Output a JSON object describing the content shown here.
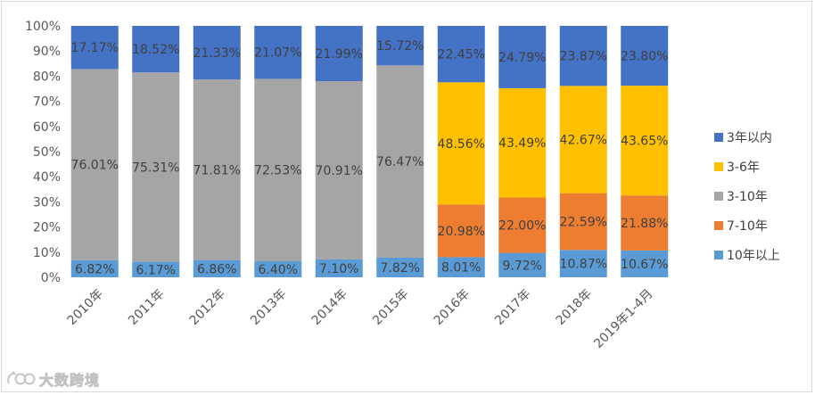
{
  "chart_data": {
    "type": "bar",
    "stacked": true,
    "percent_stacked": true,
    "categories": [
      "2010年",
      "2011年",
      "2012年",
      "2013年",
      "2014年",
      "2015年",
      "2016年",
      "2017年",
      "2018年",
      "2019年1-4月"
    ],
    "y_ticks": [
      "0%",
      "10%",
      "20%",
      "30%",
      "40%",
      "50%",
      "60%",
      "70%",
      "80%",
      "90%",
      "100%"
    ],
    "ylim": [
      0,
      100
    ],
    "legend_position": "right",
    "grid": false,
    "series": [
      {
        "name": "10年以上",
        "color": "#5b9bd5",
        "values": [
          6.82,
          6.17,
          6.86,
          6.4,
          7.1,
          7.82,
          8.01,
          9.72,
          10.87,
          10.67
        ],
        "labels": [
          "6.82%",
          "6.17%",
          "6.86%",
          "6.40%",
          "7.10%",
          "7.82%",
          "8.01%",
          "9.72%",
          "10.87%",
          "10.67%"
        ]
      },
      {
        "name": "7-10年",
        "color": "#ed7d31",
        "values": [
          null,
          null,
          null,
          null,
          null,
          null,
          20.98,
          22.0,
          22.59,
          21.88
        ],
        "labels": [
          "",
          "",
          "",
          "",
          "",
          "",
          "20.98%",
          "22.00%",
          "22.59%",
          "21.88%"
        ]
      },
      {
        "name": "3-10年",
        "color": "#a5a5a5",
        "values": [
          76.01,
          75.31,
          71.81,
          72.53,
          70.91,
          76.47,
          null,
          null,
          null,
          null
        ],
        "labels": [
          "76.01%",
          "75.31%",
          "71.81%",
          "72.53%",
          "70.91%",
          "76.47%",
          "",
          "",
          "",
          ""
        ]
      },
      {
        "name": "3-6年",
        "color": "#ffc000",
        "values": [
          null,
          null,
          null,
          null,
          null,
          null,
          48.56,
          43.49,
          42.67,
          43.65
        ],
        "labels": [
          "",
          "",
          "",
          "",
          "",
          "",
          "48.56%",
          "43.49%",
          "42.67%",
          "43.65%"
        ]
      },
      {
        "name": "3年以内",
        "color": "#4472c4",
        "values": [
          17.17,
          18.52,
          21.33,
          21.07,
          21.99,
          15.72,
          22.45,
          24.79,
          23.87,
          23.8
        ],
        "labels": [
          "17.17%",
          "18.52%",
          "21.33%",
          "21.07%",
          "21.99%",
          "15.72%",
          "22.45%",
          "24.79%",
          "23.87%",
          "23.80%"
        ]
      }
    ],
    "legend_order": [
      "3年以内",
      "3-6年",
      "3-10年",
      "7-10年",
      "10年以上"
    ]
  },
  "watermark": {
    "text": "大数跨境",
    "icon": "watermark-logo-icon"
  }
}
